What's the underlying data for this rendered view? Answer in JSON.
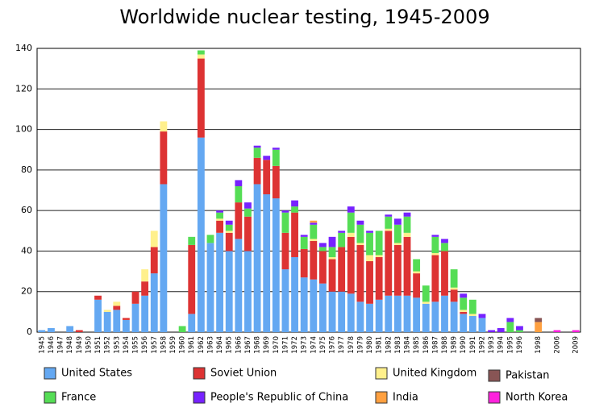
{
  "chart_data": {
    "type": "stacked-bar",
    "title": "Worldwide nuclear testing, 1945-2009",
    "categories": [
      "1945",
      "1946",
      "1947",
      "1948",
      "1949",
      "1950",
      "1951",
      "1952",
      "1953",
      "1954",
      "1955",
      "1956",
      "1957",
      "1958",
      "1959",
      "1960",
      "1961",
      "1962",
      "1963",
      "1964",
      "1965",
      "1966",
      "1967",
      "1968",
      "1969",
      "1970",
      "1971",
      "1972",
      "1973",
      "1974",
      "1975",
      "1976",
      "1977",
      "1978",
      "1979",
      "1980",
      "1981",
      "1982",
      "1983",
      "1984",
      "1985",
      "1986",
      "1987",
      "1988",
      "1989",
      "1990",
      "1991",
      "1992",
      "1993",
      "1994",
      "1995",
      "1996",
      null,
      "1998",
      null,
      "2006",
      null,
      "2009"
    ],
    "series": [
      {
        "name": "United States",
        "color": "#64a8f2",
        "values": [
          1,
          2,
          0,
          3,
          0,
          0,
          16,
          10,
          11,
          6,
          14,
          18,
          29,
          73,
          0,
          0,
          9,
          96,
          44,
          49,
          40,
          46,
          40,
          73,
          68,
          66,
          31,
          37,
          27,
          26,
          24,
          20,
          20,
          19,
          15,
          14,
          16,
          18,
          18,
          18,
          17,
          14,
          15,
          18,
          15,
          9,
          8,
          7,
          0,
          0,
          0,
          0,
          0,
          0,
          null,
          0,
          null,
          0
        ]
      },
      {
        "name": "Soviet Union",
        "color": "#dd3333",
        "values": [
          0,
          0,
          0,
          0,
          1,
          0,
          2,
          0,
          2,
          1,
          6,
          7,
          13,
          26,
          0,
          0,
          34,
          39,
          0,
          6,
          9,
          18,
          17,
          13,
          17,
          16,
          18,
          22,
          14,
          19,
          16,
          16,
          22,
          28,
          28,
          21,
          21,
          32,
          25,
          29,
          12,
          0,
          23,
          22,
          6,
          1,
          0,
          0,
          0,
          0,
          0,
          0,
          0,
          0,
          null,
          0,
          null,
          0
        ]
      },
      {
        "name": "United Kingdom",
        "color": "#fff08c",
        "values": [
          0,
          0,
          0,
          0,
          0,
          0,
          0,
          1,
          2,
          0,
          0,
          6,
          8,
          5,
          0,
          0,
          0,
          2,
          0,
          1,
          1,
          0,
          0,
          0,
          0,
          0,
          0,
          0,
          0,
          1,
          0,
          1,
          0,
          2,
          1,
          3,
          1,
          1,
          1,
          2,
          1,
          1,
          1,
          0,
          1,
          1,
          1,
          0,
          0,
          0,
          0,
          0,
          0,
          0,
          null,
          0,
          null,
          0
        ]
      },
      {
        "name": "France",
        "color": "#55dd55",
        "values": [
          0,
          0,
          0,
          0,
          0,
          0,
          0,
          0,
          0,
          0,
          0,
          0,
          0,
          0,
          0,
          3,
          4,
          2,
          4,
          3,
          3,
          8,
          4,
          5,
          0,
          8,
          10,
          3,
          6,
          7,
          2,
          5,
          7,
          10,
          9,
          11,
          12,
          6,
          9,
          8,
          6,
          8,
          8,
          4,
          9,
          6,
          7,
          0,
          0,
          0,
          5,
          1,
          0,
          0,
          null,
          0,
          null,
          0
        ]
      },
      {
        "name": "People's Republic of China",
        "color": "#7722ff",
        "values": [
          0,
          0,
          0,
          0,
          0,
          0,
          0,
          0,
          0,
          0,
          0,
          0,
          0,
          0,
          0,
          0,
          0,
          0,
          0,
          1,
          2,
          3,
          3,
          1,
          2,
          1,
          1,
          3,
          1,
          1,
          2,
          5,
          1,
          3,
          2,
          1,
          0,
          1,
          3,
          2,
          0,
          0,
          1,
          2,
          0,
          2,
          0,
          2,
          1,
          2,
          2,
          2,
          0,
          0,
          null,
          0,
          null,
          0
        ]
      },
      {
        "name": "India",
        "color": "#ffa040",
        "values": [
          0,
          0,
          0,
          0,
          0,
          0,
          0,
          0,
          0,
          0,
          0,
          0,
          0,
          0,
          0,
          0,
          0,
          0,
          0,
          0,
          0,
          0,
          0,
          0,
          0,
          0,
          0,
          0,
          0,
          1,
          0,
          0,
          0,
          0,
          0,
          0,
          0,
          0,
          0,
          0,
          0,
          0,
          0,
          0,
          0,
          0,
          0,
          0,
          0,
          0,
          0,
          0,
          0,
          5,
          null,
          0,
          null,
          0
        ]
      },
      {
        "name": "Pakistan",
        "color": "#885555",
        "values": [
          0,
          0,
          0,
          0,
          0,
          0,
          0,
          0,
          0,
          0,
          0,
          0,
          0,
          0,
          0,
          0,
          0,
          0,
          0,
          0,
          0,
          0,
          0,
          0,
          0,
          0,
          0,
          0,
          0,
          0,
          0,
          0,
          0,
          0,
          0,
          0,
          0,
          0,
          0,
          0,
          0,
          0,
          0,
          0,
          0,
          0,
          0,
          0,
          0,
          0,
          0,
          0,
          0,
          2,
          null,
          0,
          null,
          0
        ]
      },
      {
        "name": "North Korea",
        "color": "#ff22dd",
        "values": [
          0,
          0,
          0,
          0,
          0,
          0,
          0,
          0,
          0,
          0,
          0,
          0,
          0,
          0,
          0,
          0,
          0,
          0,
          0,
          0,
          0,
          0,
          0,
          0,
          0,
          0,
          0,
          0,
          0,
          0,
          0,
          0,
          0,
          0,
          0,
          0,
          0,
          0,
          0,
          0,
          0,
          0,
          0,
          0,
          0,
          0,
          0,
          0,
          0,
          0,
          0,
          0,
          0,
          0,
          null,
          1,
          null,
          1
        ]
      }
    ],
    "ylim": [
      0,
      140
    ],
    "yticks": [
      0,
      20,
      40,
      60,
      80,
      100,
      120,
      140
    ],
    "grid": true
  }
}
